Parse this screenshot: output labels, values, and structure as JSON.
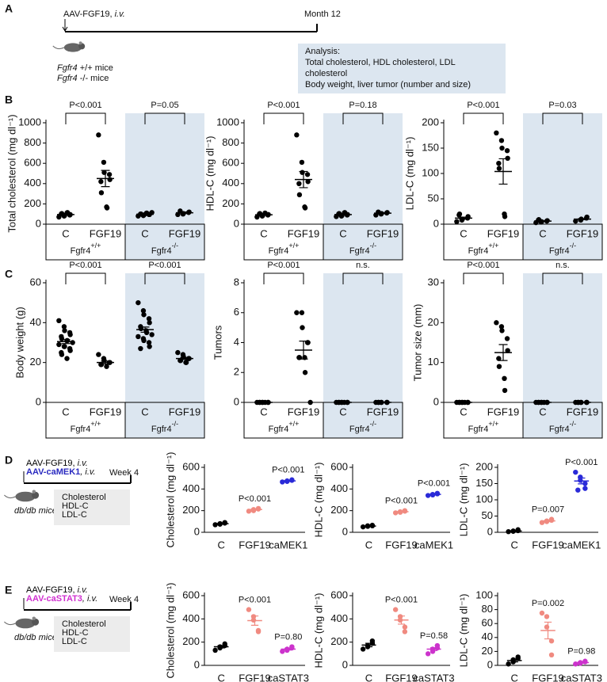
{
  "panel_labels": [
    "A",
    "B",
    "C",
    "D",
    "E"
  ],
  "panel_a": {
    "injection": "AAV-FGF19, ",
    "route": "i.v.",
    "endpoint": "Month 12",
    "mice": [
      {
        "gene": "Fgfr4",
        "genotype": " +/+ mice"
      },
      {
        "gene": "Fgfr4",
        "genotype": " -/- mice"
      }
    ],
    "analysis": [
      "Analysis:",
      "Total cholesterol, HDL cholesterol, LDL",
      "cholesterol",
      "Body weight, liver tumor (number and size)"
    ]
  },
  "panel_d": {
    "injections": [
      {
        "text": "AAV-FGF19, ",
        "route": "i.v.",
        "color": "#000000"
      },
      {
        "text": "AAV-caMEK1",
        "route": ", i.v.",
        "color": "#2a2ac0"
      }
    ],
    "endpoint": "Week 4",
    "mice": "db/db mice",
    "analysis": [
      "Cholesterol",
      "HDL-C",
      "LDL-C"
    ]
  },
  "panel_e": {
    "injections": [
      {
        "text": "AAV-FGF19, ",
        "route": "i.v.",
        "color": "#000000"
      },
      {
        "text": "AAV-caSTAT3",
        "route": ", i.v.",
        "color": "#d030d0"
      }
    ],
    "endpoint": "Week 4",
    "mice": "db/db mice",
    "analysis": [
      "Cholesterol",
      "HDL-C",
      "LDL-C"
    ]
  },
  "chart_data": [
    {
      "type": "dotplot",
      "y_label": "Total cholesterol (mg dl⁻¹)",
      "ylim": [
        0,
        1000
      ],
      "yticks": [
        0,
        200,
        400,
        600,
        800,
        1000
      ],
      "genotypes": [
        {
          "text": "Fgfr4",
          "sup": "+/+"
        },
        {
          "text": "Fgfr4",
          "sup": "-/-"
        }
      ],
      "shade": "#dce6f0",
      "comparisons": [
        "P<0.001",
        "P=0.05"
      ],
      "groups": [
        {
          "category": "C",
          "color": "#000000",
          "points": [
            70,
            80,
            85,
            90,
            95,
            100,
            105,
            110,
            115
          ],
          "mean": 95,
          "sem": 6
        },
        {
          "category": "FGF19",
          "color": "#000000",
          "points": [
            880,
            610,
            510,
            490,
            440,
            420,
            310,
            170,
            160
          ],
          "mean": 450,
          "sem": 80
        },
        {
          "category": "C",
          "color": "#000000",
          "points": [
            80,
            85,
            90,
            95,
            95,
            100,
            100,
            105,
            110,
            115
          ],
          "mean": 98,
          "sem": 4
        },
        {
          "category": "FGF19",
          "color": "#000000",
          "points": [
            95,
            100,
            105,
            115,
            120,
            130
          ],
          "mean": 112,
          "sem": 8
        }
      ]
    },
    {
      "type": "dotplot",
      "y_label": "HDL-C (mg dl⁻¹)",
      "ylim": [
        0,
        1000
      ],
      "yticks": [
        0,
        200,
        400,
        600,
        800,
        1000
      ],
      "genotypes": [
        {
          "text": "Fgfr4",
          "sup": "+/+"
        },
        {
          "text": "Fgfr4",
          "sup": "-/-"
        }
      ],
      "shade": "#dce6f0",
      "comparisons": [
        "P<0.001",
        "P=0.18"
      ],
      "groups": [
        {
          "category": "C",
          "color": "#000000",
          "points": [
            70,
            80,
            85,
            90,
            95,
            100,
            105,
            110
          ],
          "mean": 93,
          "sem": 5
        },
        {
          "category": "FGF19",
          "color": "#000000",
          "points": [
            880,
            610,
            510,
            490,
            420,
            400,
            290,
            170,
            160
          ],
          "mean": 440,
          "sem": 80
        },
        {
          "category": "C",
          "color": "#000000",
          "points": [
            75,
            80,
            85,
            90,
            95,
            100,
            105,
            110,
            115
          ],
          "mean": 95,
          "sem": 4
        },
        {
          "category": "FGF19",
          "color": "#000000",
          "points": [
            90,
            100,
            105,
            110,
            115,
            120
          ],
          "mean": 108,
          "sem": 5
        }
      ]
    },
    {
      "type": "dotplot",
      "y_label": "LDL-C (mg dl⁻¹)",
      "ylim": [
        0,
        200
      ],
      "yticks": [
        0,
        50,
        100,
        150,
        200
      ],
      "genotypes": [
        {
          "text": "Fgfr4",
          "sup": "+/+"
        },
        {
          "text": "Fgfr4",
          "sup": "-/-"
        }
      ],
      "shade": "#dce6f0",
      "comparisons": [
        "P<0.001",
        "P=0.03"
      ],
      "groups": [
        {
          "category": "C",
          "color": "#000000",
          "points": [
            5,
            8,
            10,
            12,
            15,
            18,
            20
          ],
          "mean": 12,
          "sem": 2
        },
        {
          "category": "FGF19",
          "color": "#000000",
          "points": [
            180,
            165,
            150,
            145,
            130,
            120,
            110,
            20,
            15
          ],
          "mean": 104,
          "sem": 25
        },
        {
          "category": "C",
          "color": "#000000",
          "points": [
            3,
            4,
            5,
            6,
            7,
            8,
            9
          ],
          "mean": 6,
          "sem": 1
        },
        {
          "category": "FGF19",
          "color": "#000000",
          "points": [
            6,
            8,
            10,
            12,
            14
          ],
          "mean": 10,
          "sem": 1
        }
      ]
    },
    {
      "type": "dotplot",
      "y_label": "Body weight (g)",
      "ylim": [
        0,
        60
      ],
      "yticks": [
        0,
        20,
        40,
        60
      ],
      "genotypes": [
        {
          "text": "Fgfr4",
          "sup": "+/+"
        },
        {
          "text": "Fgfr4",
          "sup": "-/-"
        }
      ],
      "shade": "#dce6f0",
      "comparisons": [
        "P<0.001",
        "P<0.001"
      ],
      "groups": [
        {
          "category": "C",
          "color": "#000000",
          "points": [
            41,
            38,
            36,
            35,
            34,
            33,
            32,
            31,
            31,
            30,
            29,
            28,
            28,
            27,
            26,
            25,
            24,
            22
          ],
          "mean": 30.5,
          "sem": 1
        },
        {
          "category": "FGF19",
          "color": "#000000",
          "points": [
            24,
            22,
            21,
            20,
            20,
            19,
            19,
            18
          ],
          "mean": 20,
          "sem": 0.7
        },
        {
          "category": "C",
          "color": "#000000",
          "points": [
            50,
            46,
            44,
            42,
            40,
            38,
            37,
            36,
            35,
            34,
            33,
            32,
            31,
            30,
            28,
            27
          ],
          "mean": 36.5,
          "sem": 1.3
        },
        {
          "category": "FGF19",
          "color": "#000000",
          "points": [
            25,
            24,
            23,
            22,
            22,
            21,
            21,
            20,
            20
          ],
          "mean": 22,
          "sem": 0.5
        }
      ]
    },
    {
      "type": "dotplot",
      "y_label": "Tumors",
      "ylim": [
        0,
        8
      ],
      "yticks": [
        0,
        2,
        4,
        6,
        8
      ],
      "genotypes": [
        {
          "text": "Fgfr4",
          "sup": "+/+"
        },
        {
          "text": "Fgfr4",
          "sup": "-/-"
        }
      ],
      "shade": "#dce6f0",
      "comparisons": [
        "P<0.001",
        "n.s."
      ],
      "groups": [
        {
          "category": "C",
          "color": "#000000",
          "points": [
            0,
            0,
            0,
            0,
            0,
            0,
            0,
            0
          ],
          "mean": 0,
          "sem": 0
        },
        {
          "category": "FGF19",
          "color": "#000000",
          "points": [
            6,
            6,
            5,
            4,
            4,
            3,
            3,
            3,
            2,
            0
          ],
          "mean": 3.5,
          "sem": 0.6
        },
        {
          "category": "C",
          "color": "#000000",
          "points": [
            0,
            0,
            0,
            0,
            0,
            0,
            0,
            0
          ],
          "mean": 0,
          "sem": 0
        },
        {
          "category": "FGF19",
          "color": "#000000",
          "points": [
            0,
            0,
            0,
            0,
            0,
            0,
            0
          ],
          "mean": 0,
          "sem": 0
        }
      ]
    },
    {
      "type": "dotplot",
      "y_label": "Tumor size (mm)",
      "ylim": [
        0,
        30
      ],
      "yticks": [
        0,
        10,
        20,
        30
      ],
      "genotypes": [
        {
          "text": "Fgfr4",
          "sup": "+/+"
        },
        {
          "text": "Fgfr4",
          "sup": "-/-"
        }
      ],
      "shade": "#dce6f0",
      "comparisons": [
        "P<0.001",
        "n.s."
      ],
      "groups": [
        {
          "category": "C",
          "color": "#000000",
          "points": [
            0,
            0,
            0,
            0,
            0,
            0,
            0,
            0
          ],
          "mean": 0,
          "sem": 0
        },
        {
          "category": "FGF19",
          "color": "#000000",
          "points": [
            20,
            19,
            18,
            16,
            13,
            11,
            9,
            6,
            3
          ],
          "mean": 12.5,
          "sem": 2
        },
        {
          "category": "C",
          "color": "#000000",
          "points": [
            0,
            0,
            0,
            0,
            0,
            0,
            0,
            0
          ],
          "mean": 0,
          "sem": 0
        },
        {
          "category": "FGF19",
          "color": "#000000",
          "points": [
            0,
            0,
            0,
            0,
            0,
            0,
            0
          ],
          "mean": 0,
          "sem": 0
        }
      ]
    },
    {
      "type": "dotplot",
      "y_label": "Cholesterol (mg dl⁻¹)",
      "ylim": [
        0,
        600
      ],
      "yticks": [
        0,
        200,
        400,
        600
      ],
      "pvalues": [
        null,
        "P<0.001",
        "P<0.001"
      ],
      "groups": [
        {
          "category": "C",
          "color": "#000000",
          "points": [
            70,
            75,
            80,
            85,
            90
          ],
          "mean": 80,
          "sem": 4
        },
        {
          "category": "FGF19",
          "color": "#f08a80",
          "points": [
            195,
            200,
            210,
            215,
            220
          ],
          "mean": 210,
          "sem": 5
        },
        {
          "category": "caMEK1",
          "color": "#2a2ad8",
          "points": [
            465,
            470,
            475,
            480,
            485
          ],
          "mean": 475,
          "sem": 4
        }
      ]
    },
    {
      "type": "dotplot",
      "y_label": "HDL-C (mg dl⁻¹)",
      "ylim": [
        0,
        600
      ],
      "yticks": [
        0,
        200,
        400,
        600
      ],
      "pvalues": [
        null,
        "P<0.001",
        "P<0.001"
      ],
      "groups": [
        {
          "category": "C",
          "color": "#000000",
          "points": [
            50,
            55,
            60,
            60,
            65
          ],
          "mean": 58,
          "sem": 3
        },
        {
          "category": "FGF19",
          "color": "#f08a80",
          "points": [
            180,
            185,
            190,
            195,
            200
          ],
          "mean": 190,
          "sem": 4
        },
        {
          "category": "caMEK1",
          "color": "#2a2ad8",
          "points": [
            340,
            345,
            350,
            355,
            360
          ],
          "mean": 350,
          "sem": 4
        }
      ]
    },
    {
      "type": "dotplot",
      "y_label": "LDL-C (mg dl⁻¹)",
      "ylim": [
        0,
        200
      ],
      "yticks": [
        0,
        50,
        100,
        150,
        200
      ],
      "pvalues": [
        null,
        "P=0.007",
        "P<0.001"
      ],
      "groups": [
        {
          "category": "C",
          "color": "#000000",
          "points": [
            2,
            3,
            4,
            5,
            8
          ],
          "mean": 4,
          "sem": 1
        },
        {
          "category": "FGF19",
          "color": "#f08a80",
          "points": [
            30,
            33,
            35,
            37,
            40
          ],
          "mean": 35,
          "sem": 2
        },
        {
          "category": "caMEK1",
          "color": "#2a2ad8",
          "points": [
            185,
            170,
            160,
            150,
            135,
            130
          ],
          "mean": 158,
          "sem": 9
        }
      ]
    },
    {
      "type": "dotplot",
      "y_label": "Cholesterol (mg dl⁻¹)",
      "ylim": [
        0,
        600
      ],
      "yticks": [
        0,
        200,
        400,
        600
      ],
      "pvalues": [
        null,
        "P<0.001",
        "P=0.80"
      ],
      "groups": [
        {
          "category": "C",
          "color": "#000000",
          "points": [
            130,
            150,
            160,
            170,
            185
          ],
          "mean": 160,
          "sem": 10
        },
        {
          "category": "FGF19",
          "color": "#f08a80",
          "points": [
            480,
            420,
            390,
            300,
            290
          ],
          "mean": 385,
          "sem": 40
        },
        {
          "category": "caSTAT3",
          "color": "#cc33cc",
          "points": [
            120,
            130,
            140,
            150,
            160
          ],
          "mean": 140,
          "sem": 8
        }
      ]
    },
    {
      "type": "dotplot",
      "y_label": "HDL-C (mg dl⁻¹)",
      "ylim": [
        0,
        600
      ],
      "yticks": [
        0,
        200,
        400,
        600
      ],
      "pvalues": [
        null,
        "P<0.001",
        "P=0.58"
      ],
      "groups": [
        {
          "category": "C",
          "color": "#000000",
          "points": [
            140,
            160,
            170,
            190,
            210
          ],
          "mean": 175,
          "sem": 15
        },
        {
          "category": "FGF19",
          "color": "#f08a80",
          "points": [
            480,
            420,
            390,
            330,
            290
          ],
          "mean": 390,
          "sem": 35
        },
        {
          "category": "caSTAT3",
          "color": "#cc33cc",
          "points": [
            100,
            120,
            140,
            150,
            170
          ],
          "mean": 140,
          "sem": 12
        }
      ]
    },
    {
      "type": "dotplot",
      "y_label": "LDL-C (mg dl⁻¹)",
      "ylim": [
        0,
        100
      ],
      "yticks": [
        0,
        20,
        40,
        60,
        80,
        100
      ],
      "pvalues": [
        null,
        "P=0.002",
        "P=0.98"
      ],
      "groups": [
        {
          "category": "C",
          "color": "#000000",
          "points": [
            2,
            5,
            8,
            10,
            12
          ],
          "mean": 7,
          "sem": 2
        },
        {
          "category": "FGF19",
          "color": "#f08a80",
          "points": [
            75,
            70,
            55,
            35,
            15
          ],
          "mean": 50,
          "sem": 12
        },
        {
          "category": "caSTAT3",
          "color": "#cc33cc",
          "points": [
            2,
            3,
            4,
            5,
            6
          ],
          "mean": 4,
          "sem": 1
        }
      ]
    }
  ]
}
